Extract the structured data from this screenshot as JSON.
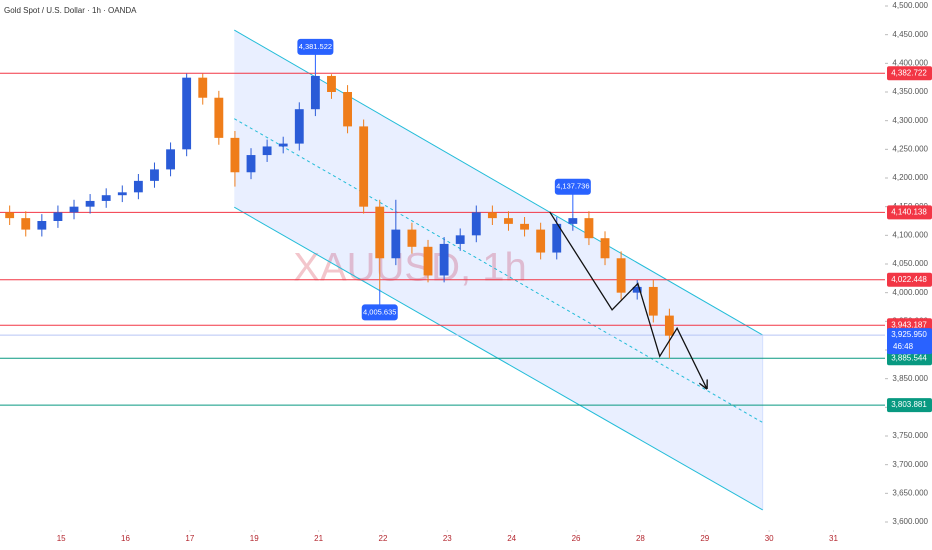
{
  "chart_data": {
    "type": "candlestick",
    "title": "Gold Spot / U.S. Dollar · 1h · OANDA",
    "watermark": "XAUUSD, 1h",
    "up_color": "#2a5bd7",
    "down_color": "#ef7d1a",
    "x": [
      0.2,
      0.45,
      0.7,
      0.95,
      1.2,
      1.45,
      1.7,
      1.95,
      2.2,
      2.45,
      2.7,
      2.95,
      3.2,
      3.45,
      3.7,
      3.95,
      4.2,
      4.45,
      4.7,
      4.95,
      5.2,
      5.45,
      5.7,
      5.95,
      6.2,
      6.45,
      6.7,
      6.95,
      7.2,
      7.45,
      7.7,
      7.95,
      8.2,
      8.45,
      8.7,
      8.95,
      9.2,
      9.45,
      9.7,
      9.95,
      10.2,
      10.45
    ],
    "open": [
      4140,
      4130,
      4110,
      4125,
      4140,
      4150,
      4160,
      4170,
      4175,
      4195,
      4215,
      4250,
      4375,
      4340,
      4270,
      4210,
      4240,
      4255,
      4260,
      4320,
      4378,
      4350,
      4290,
      4150,
      4060,
      4110,
      4080,
      4030,
      4085,
      4100,
      4140,
      4130,
      4120,
      4110,
      4070,
      4120,
      4130,
      4095,
      4060,
      4000,
      4010,
      3960
    ],
    "high": [
      4152,
      4142,
      4137,
      4152,
      4162,
      4172,
      4182,
      4187,
      4207,
      4227,
      4262,
      4382,
      4382,
      4352,
      4282,
      4252,
      4267,
      4272,
      4332,
      4381.5,
      4381,
      4362,
      4302,
      4162,
      4162,
      4122,
      4092,
      4097,
      4112,
      4152,
      4152,
      4142,
      4132,
      4122,
      4132,
      4137.7,
      4142,
      4107,
      4072,
      4022,
      4022,
      3972
    ],
    "low": [
      4118,
      4098,
      4098,
      4113,
      4128,
      4138,
      4148,
      4158,
      4163,
      4183,
      4203,
      4238,
      4328,
      4258,
      4185,
      4198,
      4228,
      4243,
      4248,
      4308,
      4338,
      4278,
      4138,
      4005.6,
      4048,
      4068,
      4018,
      4018,
      4073,
      4088,
      4118,
      4108,
      4098,
      4058,
      4058,
      4108,
      4083,
      4048,
      3988,
      3988,
      3948,
      3885.5
    ],
    "close": [
      4130,
      4110,
      4125,
      4140,
      4150,
      4160,
      4170,
      4175,
      4195,
      4215,
      4250,
      4375,
      4340,
      4270,
      4210,
      4240,
      4255,
      4260,
      4320,
      4378,
      4350,
      4290,
      4150,
      4060,
      4110,
      4080,
      4030,
      4085,
      4100,
      4140,
      4130,
      4120,
      4110,
      4070,
      4120,
      4130,
      4095,
      4060,
      4000,
      4010,
      3960,
      3925
    ],
    "xlim": [
      0.05,
      13.8
    ],
    "xticks": [
      {
        "value": 1,
        "label": "15"
      },
      {
        "value": 2,
        "label": "16"
      },
      {
        "value": 3,
        "label": "17"
      },
      {
        "value": 4,
        "label": "19"
      },
      {
        "value": 5,
        "label": "21"
      },
      {
        "value": 6,
        "label": "22"
      },
      {
        "value": 7,
        "label": "23"
      },
      {
        "value": 8,
        "label": "24"
      },
      {
        "value": 9,
        "label": "26"
      },
      {
        "value": 10,
        "label": "28"
      },
      {
        "value": 11,
        "label": "29"
      },
      {
        "value": 12,
        "label": "30"
      },
      {
        "value": 13,
        "label": "31"
      }
    ],
    "ylim": [
      3600,
      4500
    ],
    "yticks": [
      {
        "value": 4500,
        "label": "4,500.000"
      },
      {
        "value": 4450,
        "label": "4,450.000"
      },
      {
        "value": 4400,
        "label": "4,400.000"
      },
      {
        "value": 4350,
        "label": "4,350.000"
      },
      {
        "value": 4300,
        "label": "4,300.000"
      },
      {
        "value": 4250,
        "label": "4,250.000"
      },
      {
        "value": 4200,
        "label": "4,200.000"
      },
      {
        "value": 4150,
        "label": "4,150.000"
      },
      {
        "value": 4100,
        "label": "4,100.000"
      },
      {
        "value": 4050,
        "label": "4,050.000"
      },
      {
        "value": 4000,
        "label": "4,000.000"
      },
      {
        "value": 3950,
        "label": "3,950.000"
      },
      {
        "value": 3900,
        "label": "3,900.000"
      },
      {
        "value": 3850,
        "label": "3,850.000"
      },
      {
        "value": 3800,
        "label": "3,800.000"
      },
      {
        "value": 3750,
        "label": "3,750.000"
      },
      {
        "value": 3700,
        "label": "3,700.000"
      },
      {
        "value": 3650,
        "label": "3,650.000"
      },
      {
        "value": 3600,
        "label": "3,600.000"
      }
    ],
    "channel": {
      "x": [
        3.69,
        11.9
      ],
      "upper": [
        4458,
        3926
      ],
      "lower": [
        4149,
        3621
      ],
      "color": "#22bcd8"
    },
    "projection": {
      "x": [
        8.59,
        9.56,
        9.96,
        10.3,
        10.57,
        11.03
      ],
      "y": [
        4141,
        3970,
        4016,
        3889,
        3938,
        3833
      ]
    },
    "levels": [
      {
        "value": 4382.722,
        "label": "4,382.722",
        "color": "#f23645"
      },
      {
        "value": 4140.138,
        "label": "4,140.138",
        "color": "#f23645"
      },
      {
        "value": 4022.448,
        "label": "4,022.448",
        "color": "#f23645"
      },
      {
        "value": 3943.187,
        "label": "3,943.187",
        "color": "#f23645"
      },
      {
        "value": 3885.544,
        "label": "3,885.544",
        "color": "#089981"
      },
      {
        "value": 3803.881,
        "label": "3,803.881",
        "color": "#089981"
      }
    ],
    "current": {
      "value": 3925.95,
      "label": "3,925.950",
      "countdown": "46:48",
      "color": "#2962ff"
    },
    "callouts": [
      {
        "x": 4.95,
        "value": 4381.522,
        "label": "4,381.522",
        "side": "above"
      },
      {
        "x": 8.95,
        "value": 4137.736,
        "label": "4,137.736",
        "side": "above"
      },
      {
        "x": 5.95,
        "value": 4005.635,
        "label": "4,005.635",
        "side": "below"
      }
    ]
  }
}
